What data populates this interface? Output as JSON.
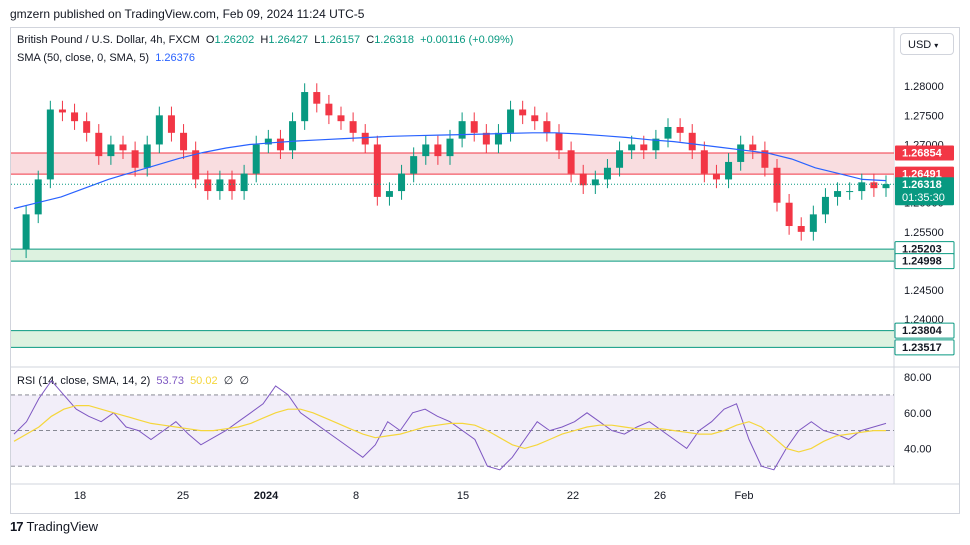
{
  "header": {
    "publisher_line": "gmzern published on TradingView.com, Feb 09, 2024 11:24 UTC-5"
  },
  "footer": {
    "brand": "TradingView",
    "logo_text": "17"
  },
  "currency_button": "USD",
  "legend": {
    "symbol": "British Pound / U.S. Dollar, 4h, FXCM",
    "o_label": "O",
    "o_value": "1.26202",
    "h_label": "H",
    "h_value": "1.26427",
    "l_label": "L",
    "l_value": "1.26157",
    "c_label": "C",
    "c_value": "1.26318",
    "change": "+0.00116 (+0.09%)",
    "sma_label": "SMA (50, close, 0, SMA, 5)",
    "sma_value": "1.26376"
  },
  "rsi_legend": {
    "label": "RSI (14, close, SMA, 14, 2)",
    "rsi_value": "53.73",
    "sma_value": "50.02",
    "extra1": "∅",
    "extra2": "∅"
  },
  "colors": {
    "up": "#089981",
    "down": "#f23645",
    "sma": "#2962ff",
    "rsi": "#7e57c2",
    "rsi_sma": "#f5d63b",
    "resistance_zone": "#f8d7da",
    "support_zone": "#d7f0da",
    "badge_red": "#f23645",
    "badge_green": "#089981",
    "badge_current": "#089981"
  },
  "chart_data": [
    {
      "type": "candlestick",
      "title": "British Pound / U.S. Dollar, 4h, FXCM",
      "ylim": [
        1.233,
        1.2845
      ],
      "y_ticks": [
        "1.28000",
        "1.27500",
        "1.27000",
        "1.26500",
        "1.26000",
        "1.25500",
        "1.24500",
        "1.24000"
      ],
      "x_ticks": [
        "18",
        "25",
        "2024",
        "8",
        "15",
        "22",
        "26",
        "Feb"
      ],
      "price_labels": [
        {
          "value": 1.26854,
          "text": "1.26854",
          "kind": "red"
        },
        {
          "value": 1.26491,
          "text": "1.26491",
          "kind": "red"
        },
        {
          "value": 1.26318,
          "text": "1.26318",
          "kind": "current",
          "sub": "01:35:30"
        },
        {
          "value": 1.25203,
          "text": "1.25203",
          "kind": "green"
        },
        {
          "value": 1.24998,
          "text": "1.24998",
          "kind": "green"
        },
        {
          "value": 1.23804,
          "text": "1.23804",
          "kind": "green"
        },
        {
          "value": 1.23517,
          "text": "1.23517",
          "kind": "green"
        }
      ],
      "zones": [
        {
          "from": 1.26491,
          "to": 1.26854,
          "kind": "resistance"
        },
        {
          "from": 1.24998,
          "to": 1.25203,
          "kind": "support"
        },
        {
          "from": 1.23517,
          "to": 1.23804,
          "kind": "support"
        }
      ],
      "close_path": [
        1.252,
        1.258,
        1.264,
        1.276,
        1.2755,
        1.274,
        1.272,
        1.268,
        1.27,
        1.269,
        1.266,
        1.27,
        1.275,
        1.272,
        1.269,
        1.264,
        1.262,
        1.264,
        1.262,
        1.265,
        1.27,
        1.271,
        1.269,
        1.274,
        1.279,
        1.277,
        1.275,
        1.274,
        1.272,
        1.27,
        1.261,
        1.262,
        1.265,
        1.268,
        1.27,
        1.268,
        1.271,
        1.274,
        1.272,
        1.27,
        1.272,
        1.276,
        1.275,
        1.274,
        1.272,
        1.269,
        1.265,
        1.263,
        1.264,
        1.266,
        1.269,
        1.27,
        1.269,
        1.271,
        1.273,
        1.272,
        1.269,
        1.265,
        1.264,
        1.267,
        1.27,
        1.269,
        1.266,
        1.26,
        1.256,
        1.255,
        1.258,
        1.261,
        1.262,
        1.262,
        1.2635,
        1.2625,
        1.2632
      ],
      "sma_path": [
        1.259,
        1.26,
        1.261,
        1.2625,
        1.264,
        1.2652,
        1.2664,
        1.2676,
        1.2686,
        1.2694,
        1.27,
        1.2703,
        1.2706,
        1.2708,
        1.271,
        1.2712,
        1.2714,
        1.2715,
        1.2716,
        1.2717,
        1.2718,
        1.2719,
        1.272,
        1.272,
        1.2718,
        1.2715,
        1.2712,
        1.2708,
        1.2705,
        1.27,
        1.2695,
        1.269,
        1.2685,
        1.2675,
        1.266,
        1.265,
        1.264,
        1.2638
      ]
    },
    {
      "type": "line",
      "title": "RSI (14, close, SMA, 14, 2)",
      "ylim": [
        20,
        84
      ],
      "y_ticks": [
        "80.00",
        "60.00",
        "40.00"
      ],
      "bands": [
        30,
        50,
        70
      ],
      "rsi_path": [
        48,
        55,
        68,
        78,
        70,
        62,
        58,
        55,
        60,
        52,
        50,
        45,
        50,
        55,
        48,
        42,
        46,
        50,
        55,
        60,
        65,
        75,
        70,
        60,
        55,
        50,
        45,
        40,
        35,
        42,
        55,
        50,
        60,
        62,
        58,
        55,
        50,
        45,
        30,
        28,
        35,
        45,
        55,
        50,
        52,
        55,
        60,
        55,
        50,
        48,
        52,
        55,
        50,
        45,
        40,
        50,
        55,
        62,
        65,
        45,
        30,
        28,
        40,
        50,
        55,
        50,
        48,
        45,
        50,
        52,
        54
      ],
      "sma_path": [
        44,
        48,
        52,
        58,
        62,
        64,
        64,
        62,
        60,
        58,
        56,
        54,
        53,
        52,
        51,
        50,
        50,
        51,
        52,
        54,
        57,
        60,
        62,
        62,
        60,
        57,
        54,
        51,
        48,
        46,
        47,
        48,
        50,
        52,
        53,
        54,
        54,
        53,
        50,
        46,
        42,
        40,
        42,
        45,
        48,
        50,
        52,
        53,
        53,
        52,
        51,
        51,
        51,
        50,
        49,
        48,
        48,
        50,
        53,
        55,
        52,
        46,
        40,
        38,
        40,
        44,
        47,
        48,
        49,
        50,
        50
      ]
    }
  ]
}
